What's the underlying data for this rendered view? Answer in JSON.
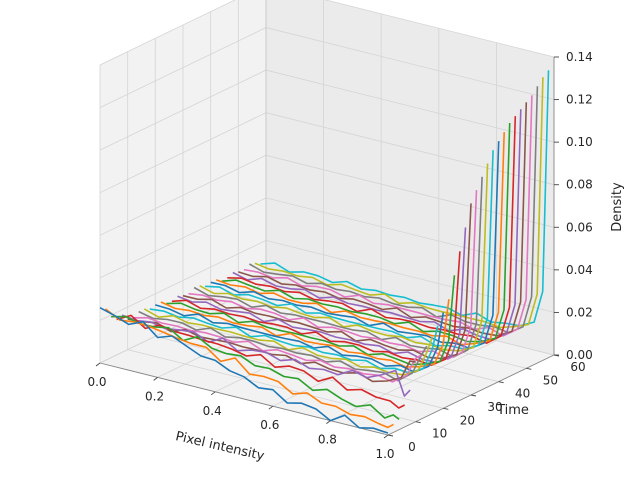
{
  "chart_data": {
    "type": "line",
    "projection": "3d",
    "title": "",
    "xlabel": "Pixel intensity",
    "ylabel": "Time",
    "zlabel": "Density",
    "xlim": [
      0.0,
      1.0
    ],
    "ylim": [
      0,
      60
    ],
    "zlim": [
      0.0,
      0.14
    ],
    "xticks": [
      "0.0",
      "0.2",
      "0.4",
      "0.6",
      "0.8",
      "1.0"
    ],
    "yticks": [
      "0",
      "10",
      "20",
      "30",
      "40",
      "50",
      "60"
    ],
    "zticks": [
      "0.00",
      "0.02",
      "0.04",
      "0.06",
      "0.08",
      "0.10",
      "0.12",
      "0.14"
    ],
    "grid": true,
    "legend": "none",
    "series_times": [
      0,
      2,
      4,
      6,
      8,
      10,
      12,
      14,
      16,
      18,
      20,
      22,
      24,
      26,
      28,
      30,
      32,
      34,
      36,
      38,
      40,
      42,
      44,
      46,
      48,
      50,
      52,
      54,
      56,
      58
    ],
    "x": [
      0.0,
      0.05,
      0.1,
      0.15,
      0.2,
      0.25,
      0.3,
      0.35,
      0.4,
      0.45,
      0.5,
      0.55,
      0.6,
      0.65,
      0.7,
      0.75,
      0.8,
      0.85,
      0.9,
      0.95,
      0.98,
      1.0
    ],
    "early_densities": [
      [
        0.025,
        0.024,
        0.023,
        0.022,
        0.021,
        0.02,
        0.018,
        0.016,
        0.014,
        0.012,
        0.01,
        0.008,
        0.006,
        0.005,
        0.004,
        0.003,
        0.002,
        0.002,
        0.001,
        0.001,
        0.001,
        0.001
      ],
      [
        0.022,
        0.022,
        0.021,
        0.021,
        0.02,
        0.019,
        0.018,
        0.017,
        0.015,
        0.014,
        0.012,
        0.011,
        0.009,
        0.008,
        0.007,
        0.006,
        0.005,
        0.004,
        0.003,
        0.003,
        0.002,
        0.002
      ],
      [
        0.02,
        0.02,
        0.02,
        0.02,
        0.019,
        0.019,
        0.018,
        0.017,
        0.016,
        0.015,
        0.014,
        0.013,
        0.012,
        0.011,
        0.01,
        0.009,
        0.008,
        0.007,
        0.006,
        0.006,
        0.005,
        0.005
      ],
      [
        0.018,
        0.018,
        0.018,
        0.018,
        0.018,
        0.018,
        0.017,
        0.017,
        0.016,
        0.016,
        0.015,
        0.015,
        0.014,
        0.014,
        0.013,
        0.013,
        0.012,
        0.012,
        0.011,
        0.01,
        0.009,
        0.01
      ],
      [
        0.017,
        0.017,
        0.017,
        0.017,
        0.017,
        0.017,
        0.017,
        0.016,
        0.016,
        0.016,
        0.016,
        0.016,
        0.016,
        0.015,
        0.015,
        0.016,
        0.017,
        0.018,
        0.02,
        0.022,
        0.015,
        0.014
      ]
    ],
    "late_profile": {
      "flat_level_start": 0.015,
      "flat_level_end": 0.011,
      "peak_x": 1.0,
      "peak_values": [
        0.028,
        0.03,
        0.033,
        0.036,
        0.04,
        0.045,
        0.05,
        0.06,
        0.07,
        0.08,
        0.09,
        0.095,
        0.1,
        0.105,
        0.11,
        0.113,
        0.116,
        0.119,
        0.121,
        0.123,
        0.125,
        0.127,
        0.13,
        0.133,
        0.135
      ]
    },
    "colors": [
      "#1f77b4",
      "#ff7f0e",
      "#2ca02c",
      "#d62728",
      "#9467bd",
      "#8c564b",
      "#e377c2",
      "#7f7f7f",
      "#bcbd22",
      "#17becf"
    ]
  }
}
